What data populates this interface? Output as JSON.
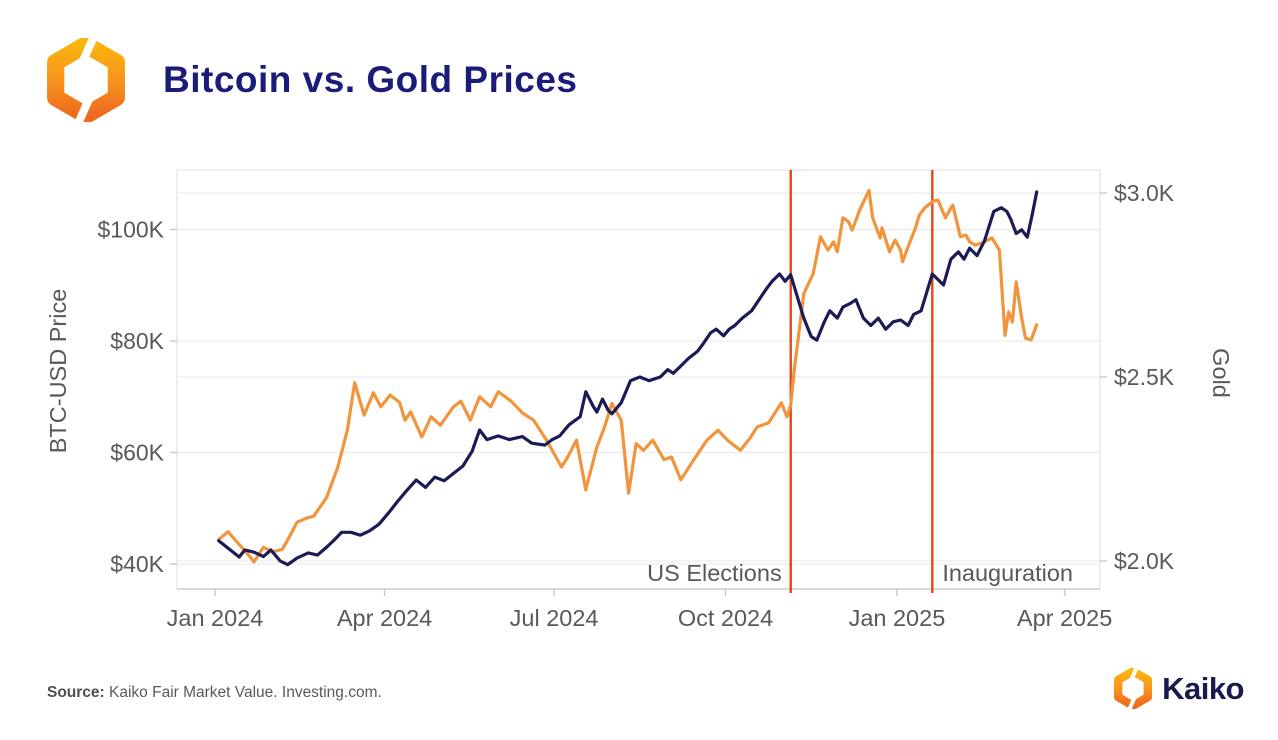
{
  "header": {
    "title": "Bitcoin vs. Gold Prices"
  },
  "footer": {
    "source_label": "Source:",
    "source_text": " Kaiko Fair Market Value. Investing.com.",
    "brand": "Kaiko"
  },
  "chart_data": {
    "type": "line",
    "title": "Bitcoin vs. Gold Prices",
    "grid": true,
    "legend": "none",
    "background": "#ffffff",
    "x_axis": {
      "range": [
        "2024-01-01",
        "2025-04-20"
      ],
      "ticks": [
        {
          "date": "2024-01-01",
          "label": "Jan 2024"
        },
        {
          "date": "2024-04-01",
          "label": "Apr 2024"
        },
        {
          "date": "2024-07-01",
          "label": "Jul 2024"
        },
        {
          "date": "2024-10-01",
          "label": "Oct 2024"
        },
        {
          "date": "2025-01-01",
          "label": "Jan 2025"
        },
        {
          "date": "2025-04-01",
          "label": "Apr 2025"
        }
      ]
    },
    "y_left": {
      "title": "BTC-USD Price",
      "unit": "USD thousands",
      "range": [
        35.5,
        110.7
      ],
      "ticks": [
        {
          "value": 100,
          "label": "$100K"
        },
        {
          "value": 80,
          "label": "$80K"
        },
        {
          "value": 60,
          "label": "$60K"
        },
        {
          "value": 40,
          "label": "$40K"
        }
      ]
    },
    "y_right": {
      "title": "Gold",
      "unit": "USD thousands per oz",
      "range": [
        1.92,
        3.06
      ],
      "ticks": [
        {
          "value": 3.0,
          "label": "$3.0K"
        },
        {
          "value": 2.5,
          "label": "$2.5K"
        },
        {
          "value": 2.0,
          "label": "$2.0K"
        }
      ]
    },
    "annotations": [
      {
        "label": "US Elections",
        "date": "2024-11-05",
        "side": "left"
      },
      {
        "label": "Inauguration",
        "date": "2025-01-20",
        "side": "right"
      }
    ],
    "event_line_color": "#e0471a",
    "series": [
      {
        "name": "BTC-USD Price",
        "axis": "left",
        "color": "#f0953c",
        "points": [
          [
            "2024-01-03",
            44.4
          ],
          [
            "2024-01-08",
            45.8
          ],
          [
            "2024-01-14",
            43.5
          ],
          [
            "2024-01-17",
            42.4
          ],
          [
            "2024-01-22",
            40.4
          ],
          [
            "2024-01-27",
            43.0
          ],
          [
            "2024-02-01",
            42.2
          ],
          [
            "2024-02-06",
            42.6
          ],
          [
            "2024-02-09",
            44.3
          ],
          [
            "2024-02-14",
            47.5
          ],
          [
            "2024-02-19",
            48.2
          ],
          [
            "2024-02-23",
            48.6
          ],
          [
            "2024-02-28",
            51.0
          ],
          [
            "2024-03-01",
            52.0
          ],
          [
            "2024-03-07",
            57.5
          ],
          [
            "2024-03-12",
            64.0
          ],
          [
            "2024-03-16",
            72.5
          ],
          [
            "2024-03-21",
            66.7
          ],
          [
            "2024-03-26",
            70.7
          ],
          [
            "2024-03-30",
            68.2
          ],
          [
            "2024-04-04",
            70.3
          ],
          [
            "2024-04-09",
            69.0
          ],
          [
            "2024-04-12",
            65.8
          ],
          [
            "2024-04-15",
            67.3
          ],
          [
            "2024-04-21",
            62.8
          ],
          [
            "2024-04-26",
            66.4
          ],
          [
            "2024-05-01",
            64.9
          ],
          [
            "2024-05-08",
            68.2
          ],
          [
            "2024-05-12",
            69.2
          ],
          [
            "2024-05-17",
            65.8
          ],
          [
            "2024-05-22",
            70.0
          ],
          [
            "2024-05-28",
            68.2
          ],
          [
            "2024-06-01",
            70.9
          ],
          [
            "2024-06-08",
            69.2
          ],
          [
            "2024-06-14",
            67.1
          ],
          [
            "2024-06-20",
            65.8
          ],
          [
            "2024-06-27",
            62.2
          ],
          [
            "2024-07-05",
            57.4
          ],
          [
            "2024-07-08",
            59.0
          ],
          [
            "2024-07-13",
            62.2
          ],
          [
            "2024-07-18",
            53.3
          ],
          [
            "2024-07-24",
            61.0
          ],
          [
            "2024-07-28",
            64.5
          ],
          [
            "2024-08-01",
            68.8
          ],
          [
            "2024-08-06",
            65.8
          ],
          [
            "2024-08-10",
            52.7
          ],
          [
            "2024-08-14",
            61.6
          ],
          [
            "2024-08-18",
            60.4
          ],
          [
            "2024-08-23",
            62.2
          ],
          [
            "2024-08-29",
            58.7
          ],
          [
            "2024-09-02",
            59.2
          ],
          [
            "2024-09-07",
            55.1
          ],
          [
            "2024-09-14",
            58.7
          ],
          [
            "2024-09-21",
            62.2
          ],
          [
            "2024-09-27",
            64.0
          ],
          [
            "2024-10-02",
            62.2
          ],
          [
            "2024-10-09",
            60.4
          ],
          [
            "2024-10-14",
            62.5
          ],
          [
            "2024-10-18",
            64.6
          ],
          [
            "2024-10-24",
            65.3
          ],
          [
            "2024-10-31",
            68.9
          ],
          [
            "2024-11-03",
            66.4
          ],
          [
            "2024-11-05",
            68.5
          ],
          [
            "2024-11-07",
            75.0
          ],
          [
            "2024-11-12",
            88.5
          ],
          [
            "2024-11-17",
            92.0
          ],
          [
            "2024-11-21",
            98.7
          ],
          [
            "2024-11-25",
            96.3
          ],
          [
            "2024-11-28",
            97.8
          ],
          [
            "2024-11-30",
            96.0
          ],
          [
            "2024-12-03",
            102.1
          ],
          [
            "2024-12-06",
            101.4
          ],
          [
            "2024-12-08",
            99.9
          ],
          [
            "2024-12-12",
            103.5
          ],
          [
            "2024-12-17",
            107.0
          ],
          [
            "2024-12-19",
            102.1
          ],
          [
            "2024-12-23",
            98.5
          ],
          [
            "2024-12-24",
            100.3
          ],
          [
            "2024-12-28",
            96.0
          ],
          [
            "2024-12-31",
            98.1
          ],
          [
            "2025-01-03",
            96.3
          ],
          [
            "2025-01-04",
            94.2
          ],
          [
            "2025-01-08",
            97.8
          ],
          [
            "2025-01-11",
            100.3
          ],
          [
            "2025-01-13",
            102.6
          ],
          [
            "2025-01-16",
            103.9
          ],
          [
            "2025-01-20",
            105.0
          ],
          [
            "2025-01-23",
            105.3
          ],
          [
            "2025-01-27",
            102.1
          ],
          [
            "2025-01-31",
            104.4
          ],
          [
            "2025-02-04",
            98.7
          ],
          [
            "2025-02-07",
            99.0
          ],
          [
            "2025-02-09",
            97.8
          ],
          [
            "2025-02-12",
            97.2
          ],
          [
            "2025-02-16",
            97.6
          ],
          [
            "2025-02-21",
            98.5
          ],
          [
            "2025-02-25",
            96.3
          ],
          [
            "2025-02-28",
            81.0
          ],
          [
            "2025-03-02",
            85.2
          ],
          [
            "2025-03-04",
            83.4
          ],
          [
            "2025-03-06",
            90.6
          ],
          [
            "2025-03-09",
            84.1
          ],
          [
            "2025-03-11",
            80.5
          ],
          [
            "2025-03-14",
            80.2
          ],
          [
            "2025-03-17",
            82.9
          ]
        ]
      },
      {
        "name": "Gold",
        "axis": "right",
        "color": "#1b1b55",
        "points": [
          [
            "2024-01-03",
            2.055
          ],
          [
            "2024-01-08",
            2.035
          ],
          [
            "2024-01-14",
            2.011
          ],
          [
            "2024-01-17",
            2.03
          ],
          [
            "2024-01-22",
            2.024
          ],
          [
            "2024-01-27",
            2.012
          ],
          [
            "2024-01-31",
            2.03
          ],
          [
            "2024-02-05",
            2.0
          ],
          [
            "2024-02-09",
            1.99
          ],
          [
            "2024-02-14",
            2.008
          ],
          [
            "2024-02-20",
            2.022
          ],
          [
            "2024-02-25",
            2.016
          ],
          [
            "2024-03-01",
            2.038
          ],
          [
            "2024-03-05",
            2.057
          ],
          [
            "2024-03-09",
            2.078
          ],
          [
            "2024-03-14",
            2.078
          ],
          [
            "2024-03-19",
            2.07
          ],
          [
            "2024-03-24",
            2.082
          ],
          [
            "2024-03-29",
            2.1
          ],
          [
            "2024-04-03",
            2.13
          ],
          [
            "2024-04-08",
            2.162
          ],
          [
            "2024-04-13",
            2.192
          ],
          [
            "2024-04-18",
            2.22
          ],
          [
            "2024-04-23",
            2.2
          ],
          [
            "2024-04-28",
            2.228
          ],
          [
            "2024-05-03",
            2.218
          ],
          [
            "2024-05-08",
            2.238
          ],
          [
            "2024-05-13",
            2.258
          ],
          [
            "2024-05-18",
            2.298
          ],
          [
            "2024-05-22",
            2.356
          ],
          [
            "2024-05-26",
            2.33
          ],
          [
            "2024-06-01",
            2.34
          ],
          [
            "2024-06-07",
            2.33
          ],
          [
            "2024-06-14",
            2.338
          ],
          [
            "2024-06-19",
            2.32
          ],
          [
            "2024-06-26",
            2.315
          ],
          [
            "2024-06-30",
            2.33
          ],
          [
            "2024-07-04",
            2.34
          ],
          [
            "2024-07-09",
            2.37
          ],
          [
            "2024-07-15",
            2.392
          ],
          [
            "2024-07-18",
            2.46
          ],
          [
            "2024-07-22",
            2.42
          ],
          [
            "2024-07-24",
            2.405
          ],
          [
            "2024-07-27",
            2.44
          ],
          [
            "2024-07-30",
            2.41
          ],
          [
            "2024-08-01",
            2.4
          ],
          [
            "2024-08-06",
            2.43
          ],
          [
            "2024-08-11",
            2.49
          ],
          [
            "2024-08-16",
            2.5
          ],
          [
            "2024-08-21",
            2.49
          ],
          [
            "2024-08-27",
            2.5
          ],
          [
            "2024-08-31",
            2.52
          ],
          [
            "2024-09-03",
            2.51
          ],
          [
            "2024-09-07",
            2.53
          ],
          [
            "2024-09-11",
            2.55
          ],
          [
            "2024-09-16",
            2.57
          ],
          [
            "2024-09-19",
            2.59
          ],
          [
            "2024-09-23",
            2.62
          ],
          [
            "2024-09-26",
            2.63
          ],
          [
            "2024-09-30",
            2.612
          ],
          [
            "2024-10-03",
            2.63
          ],
          [
            "2024-10-06",
            2.64
          ],
          [
            "2024-10-10",
            2.66
          ],
          [
            "2024-10-15",
            2.68
          ],
          [
            "2024-10-19",
            2.71
          ],
          [
            "2024-10-23",
            2.74
          ],
          [
            "2024-10-26",
            2.76
          ],
          [
            "2024-10-30",
            2.78
          ],
          [
            "2024-11-02",
            2.76
          ],
          [
            "2024-11-05",
            2.778
          ],
          [
            "2024-11-09",
            2.71
          ],
          [
            "2024-11-12",
            2.66
          ],
          [
            "2024-11-16",
            2.61
          ],
          [
            "2024-11-19",
            2.6
          ],
          [
            "2024-11-23",
            2.65
          ],
          [
            "2024-11-26",
            2.68
          ],
          [
            "2024-11-30",
            2.66
          ],
          [
            "2024-12-03",
            2.69
          ],
          [
            "2024-12-07",
            2.7
          ],
          [
            "2024-12-10",
            2.71
          ],
          [
            "2024-12-14",
            2.66
          ],
          [
            "2024-12-18",
            2.64
          ],
          [
            "2024-12-22",
            2.66
          ],
          [
            "2024-12-26",
            2.63
          ],
          [
            "2024-12-30",
            2.65
          ],
          [
            "2025-01-03",
            2.655
          ],
          [
            "2025-01-07",
            2.64
          ],
          [
            "2025-01-10",
            2.67
          ],
          [
            "2025-01-14",
            2.68
          ],
          [
            "2025-01-17",
            2.73
          ],
          [
            "2025-01-20",
            2.78
          ],
          [
            "2025-01-26",
            2.75
          ],
          [
            "2025-01-30",
            2.82
          ],
          [
            "2025-02-03",
            2.84
          ],
          [
            "2025-02-06",
            2.82
          ],
          [
            "2025-02-09",
            2.85
          ],
          [
            "2025-02-13",
            2.83
          ],
          [
            "2025-02-17",
            2.87
          ],
          [
            "2025-02-22",
            2.95
          ],
          [
            "2025-02-26",
            2.96
          ],
          [
            "2025-03-01",
            2.95
          ],
          [
            "2025-03-03",
            2.93
          ],
          [
            "2025-03-06",
            2.89
          ],
          [
            "2025-03-09",
            2.9
          ],
          [
            "2025-03-12",
            2.88
          ],
          [
            "2025-03-15",
            2.95
          ],
          [
            "2025-03-17",
            3.003
          ]
        ]
      }
    ]
  }
}
